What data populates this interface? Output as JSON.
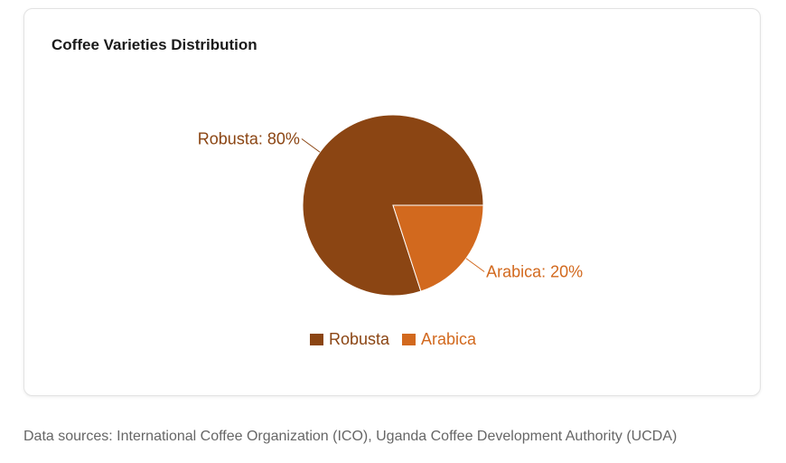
{
  "chart_data": {
    "type": "pie",
    "title": "Coffee Varieties Distribution",
    "slices": [
      {
        "name": "Robusta",
        "value": 80,
        "label": "Robusta: 80%",
        "color": "#8B4513"
      },
      {
        "name": "Arabica",
        "value": 20,
        "label": "Arabica: 20%",
        "color": "#D2691E"
      }
    ],
    "legend": {
      "position": "bottom",
      "items": [
        "Robusta",
        "Arabica"
      ]
    }
  },
  "footer": {
    "source_note": "Data sources: International Coffee Organization (ICO), Uganda Coffee Development Authority (UCDA)"
  }
}
